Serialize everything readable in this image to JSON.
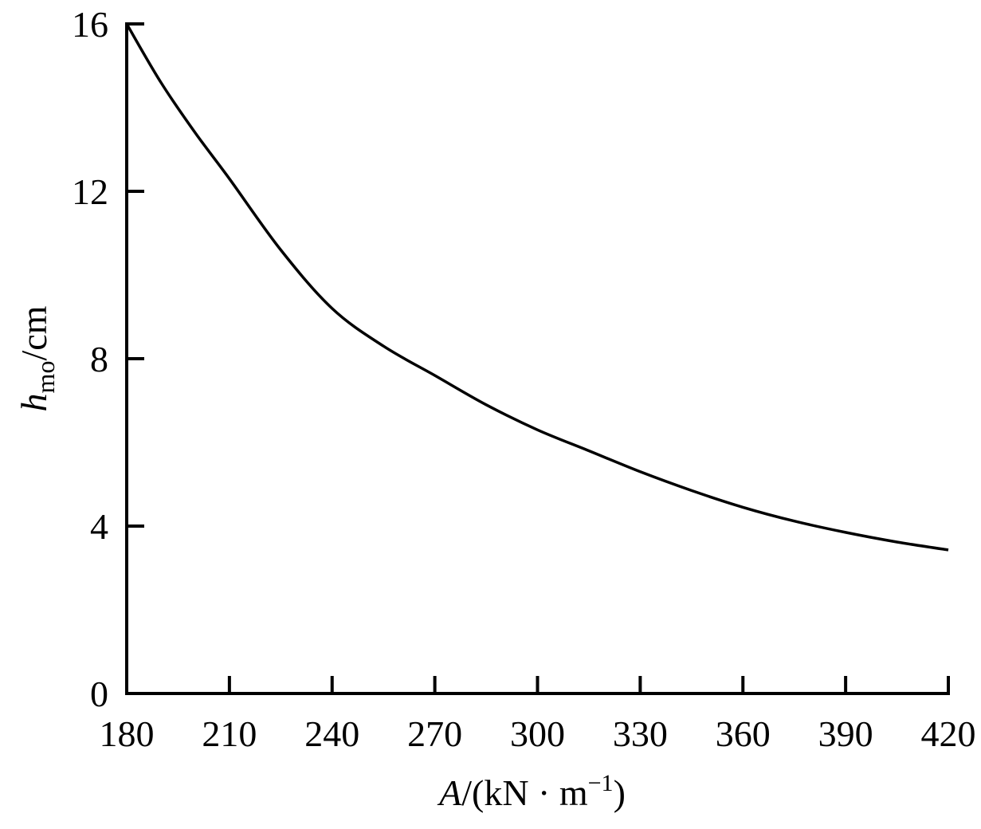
{
  "chart_data": {
    "type": "line",
    "title": "",
    "xlabel": "A/(kN · m⁻¹)",
    "ylabel": "h_mo/cm",
    "xlabel_parts": {
      "var": "A",
      "rest": "/(kN · m",
      "sup": "−1",
      "close": ")"
    },
    "ylabel_parts": {
      "var": "h",
      "sub": "mo",
      "rest": "/cm"
    },
    "xlim": [
      180,
      420
    ],
    "ylim": [
      0,
      16
    ],
    "x_ticks": [
      180,
      210,
      240,
      270,
      300,
      330,
      360,
      390,
      420
    ],
    "y_ticks": [
      0,
      4,
      8,
      12,
      16
    ],
    "grid": false,
    "legend": null,
    "series": [
      {
        "name": "h_mo",
        "color": "#000000",
        "x": [
          180,
          190,
          200,
          210,
          225,
          240,
          255,
          270,
          285,
          300,
          315,
          330,
          345,
          360,
          375,
          390,
          405,
          420
        ],
        "values": [
          16.0,
          14.6,
          13.4,
          12.3,
          10.6,
          9.2,
          8.3,
          7.6,
          6.9,
          6.3,
          5.8,
          5.3,
          4.85,
          4.45,
          4.12,
          3.85,
          3.62,
          3.43
        ]
      }
    ]
  }
}
